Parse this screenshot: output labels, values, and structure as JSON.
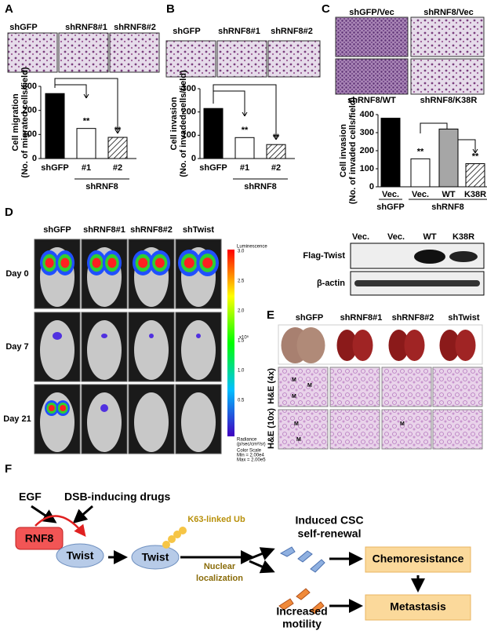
{
  "panels": {
    "A": {
      "letter": "A",
      "image_labels": [
        "shGFP",
        "shRNF8#1",
        "shRNF8#2"
      ]
    },
    "B": {
      "letter": "B",
      "image_labels": [
        "shGFP",
        "shRNF8#1",
        "shRNF8#2"
      ]
    },
    "C": {
      "letter": "C",
      "image_labels": [
        "shGFP/Vec",
        "shRNF8/Vec",
        "shRNF8/WT",
        "shRNF8/K38R"
      ],
      "blot": {
        "lanes": [
          "Vec.",
          "Vec.",
          "WT",
          "K38R"
        ],
        "rows": [
          "Flag-Twist",
          "β-actin"
        ]
      }
    },
    "D": {
      "letter": "D",
      "columns": [
        "shGFP",
        "shRNF8#1",
        "shRNF8#2",
        "shTwist"
      ],
      "rows": [
        "Day 0",
        "Day 7",
        "Day 21"
      ],
      "colorbar": {
        "title": "Luminescence",
        "ticks": [
          "3.0",
          "2.5",
          "2.0",
          "1.5",
          "1.0",
          "0.5"
        ],
        "exponent": "x10⁵",
        "unit_label": "Radiance",
        "unit": "(p/sec/cm²/sr)",
        "scale": [
          "Color Scale",
          "Min = 2.00e4",
          "Max = 2.00e5"
        ]
      }
    },
    "E": {
      "letter": "E",
      "columns": [
        "shGFP",
        "shRNF8#1",
        "shRNF8#2",
        "shTwist"
      ],
      "rows": [
        "H&E (4x)",
        "H&E (10x)"
      ],
      "marker": "M"
    },
    "F": {
      "letter": "F",
      "egf": "EGF",
      "drugs": "DSB-inducing drugs",
      "rnf8": "RNF8",
      "twist": "Twist",
      "ub": "K63-linked Ub",
      "nuclear": [
        "Nuclear",
        "localization"
      ],
      "csc": [
        "Induced CSC",
        "self-renewal"
      ],
      "chemo": "Chemoresistance",
      "metastasis": "Metastasis",
      "motility": [
        "Increased",
        "motility"
      ]
    }
  },
  "chart_data": [
    {
      "type": "bar",
      "categories": [
        "shGFP",
        "#1",
        "#2"
      ],
      "values": [
        270,
        125,
        88
      ],
      "colors": [
        "#000000",
        "#ffffff",
        "#ffffff"
      ],
      "hatched": [
        false,
        false,
        true
      ],
      "significance": [
        null,
        "**",
        "**"
      ],
      "ylabel": [
        "Cell migration",
        "(No. of migrated cells/field)"
      ],
      "group_labels": [
        "shRNF8"
      ],
      "ylim": [
        0,
        300
      ],
      "yticks": [
        0,
        100,
        200,
        300
      ]
    },
    {
      "type": "bar",
      "categories": [
        "shGFP",
        "#1",
        "#2"
      ],
      "values": [
        215,
        90,
        60
      ],
      "colors": [
        "#000000",
        "#ffffff",
        "#ffffff"
      ],
      "hatched": [
        false,
        false,
        true
      ],
      "significance": [
        null,
        "**",
        "**"
      ],
      "ylabel": [
        "Cell invasion",
        "(No. of invaded  cells/field)"
      ],
      "group_labels": [
        "shRNF8"
      ],
      "ylim": [
        0,
        300
      ],
      "yticks": [
        0,
        100,
        200,
        300
      ]
    },
    {
      "type": "bar",
      "categories": [
        "Vec.",
        "Vec.",
        "WT",
        "K38R"
      ],
      "values": [
        380,
        155,
        320,
        128
      ],
      "colors": [
        "#000000",
        "#ffffff",
        "#a6a6a6",
        "#ffffff"
      ],
      "hatched": [
        false,
        false,
        false,
        true
      ],
      "significance": [
        null,
        "**",
        null,
        "**"
      ],
      "ylabel": [
        "Cell invasion",
        "(No. of invaded cells/field)"
      ],
      "group_labels": [
        "shGFP",
        "shRNF8"
      ],
      "ylim": [
        0,
        400
      ],
      "yticks": [
        0,
        100,
        200,
        300,
        400
      ]
    }
  ]
}
